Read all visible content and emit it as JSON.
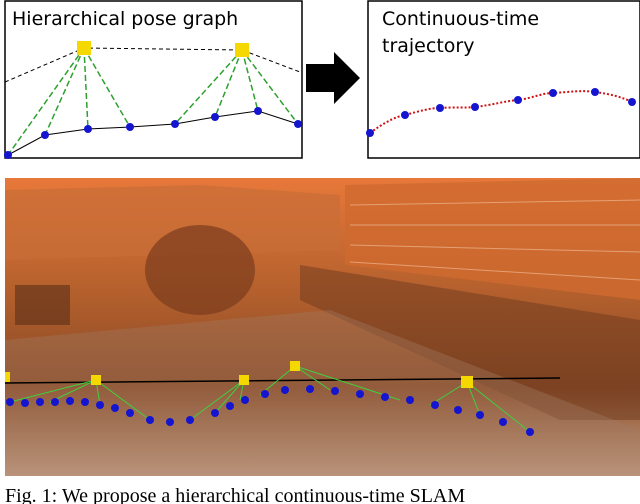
{
  "panels": [
    {
      "title_lines": [
        "Hierarchical pose graph"
      ]
    },
    {
      "title_lines": [
        "Continuous-time",
        "trajectory"
      ]
    }
  ],
  "caption": "Fig. 1: We propose a hierarchical continuous-time SLAM"
}
